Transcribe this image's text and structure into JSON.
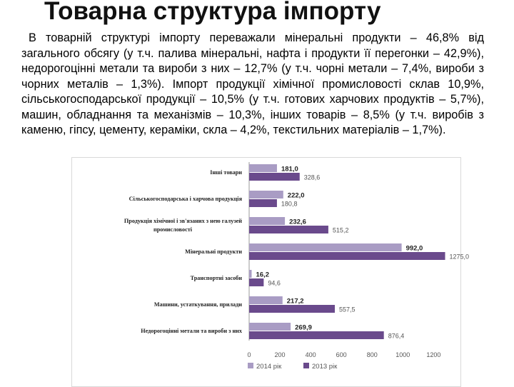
{
  "page": {
    "title": "Товарна структура імпорту",
    "paragraph": "В товарній структурі імпорту переважали мінеральні продукти – 46,8% від загального обсягу (у т.ч. палива мінеральні, нафта і продукти її перегонки – 42,9%), недорогоцінні метали та вироби з них – 12,7% (у т.ч. чорні метали – 7,4%, вироби з чорних металів – 1,3%). Імпорт продукції хімічної промисловості склав 10,9%, сільськогосподарської продукції – 10,5% (у т.ч. готових харчових продуктів – 5,7%), машин, обладнання та механізмів – 10,3%, інших товарів – 8,5% (у т.ч. виробів з каменю, гіпсу, цементу, кераміки, скла – 4,2%, текстильних матеріалів – 1,7%)."
  },
  "chart_data": {
    "type": "bar",
    "orientation": "horizontal",
    "title": "",
    "categories": [
      "Інші товари",
      "Сільськогосподарська і харчова продукція",
      "Продукція хімічної і зв'язаних з нею галузей промисловості",
      "Мінеральні продукти",
      "Транспортні засоби",
      "Машини, устаткування, прилади",
      "Недорогоцінні метали та вироби з них"
    ],
    "series": [
      {
        "name": "2014 рік",
        "color": "#a99cc4",
        "values": [
          181.0,
          222.0,
          232.6,
          992.0,
          16.2,
          217.2,
          269.9
        ],
        "labels": [
          "181,0",
          "222,0",
          "232,6",
          "992,0",
          "16,2",
          "217,2",
          "269,9"
        ]
      },
      {
        "name": "2013 рік",
        "color": "#6a4a8c",
        "values": [
          328.6,
          180.8,
          515.2,
          1275.0,
          94.6,
          557.5,
          876.4
        ],
        "labels": [
          "328,6",
          "180,8",
          "515,2",
          "1275,0",
          "94,6",
          "557,5",
          "876,4"
        ]
      }
    ],
    "x_ticks": [
      "0",
      "200",
      "400",
      "600",
      "800",
      "1000",
      "1200"
    ],
    "xlim": [
      0,
      1300
    ],
    "xlabel": "",
    "ylabel": "",
    "legend": "bottom"
  }
}
